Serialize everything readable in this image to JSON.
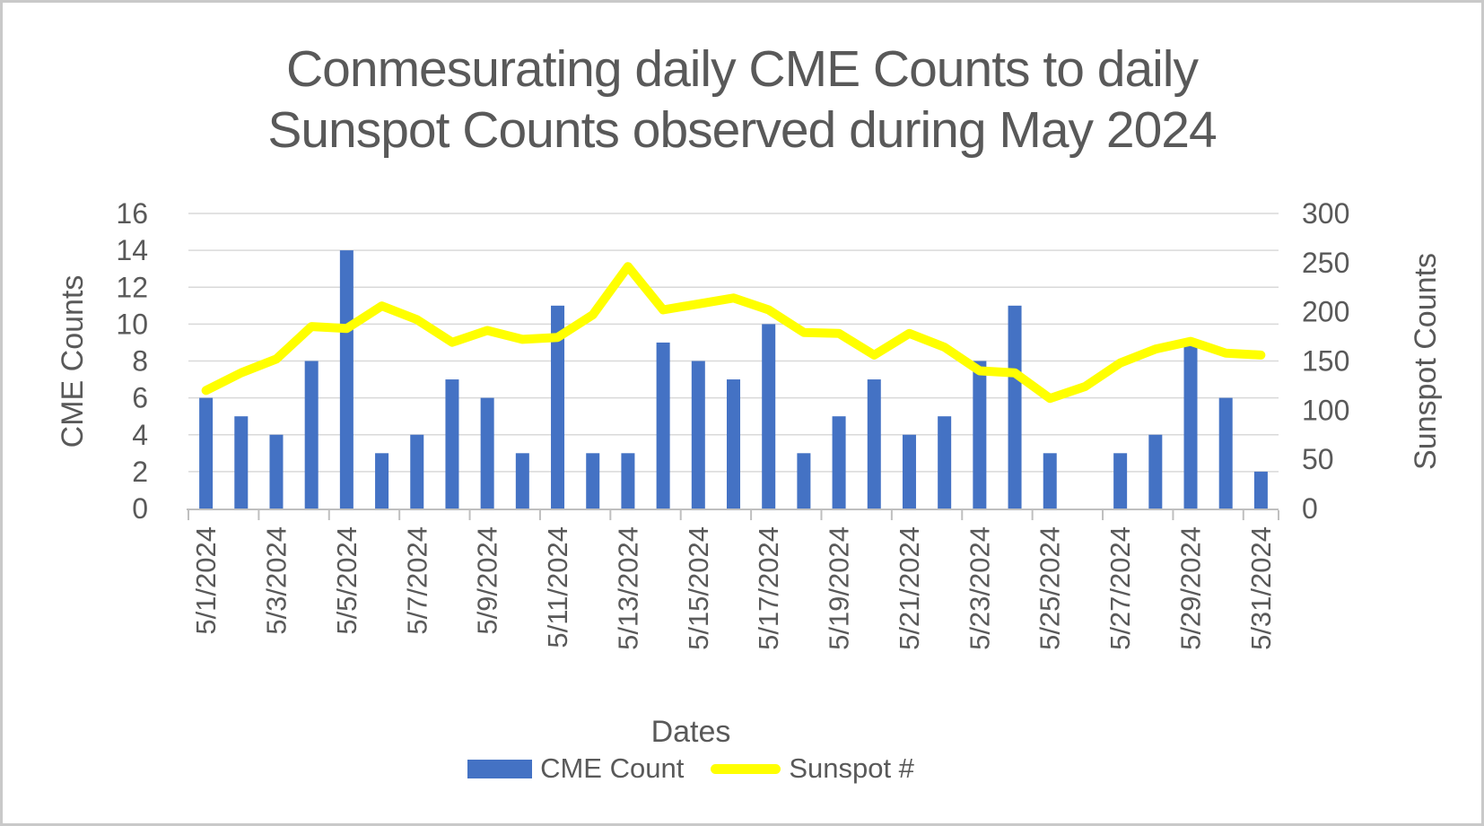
{
  "chart_data": {
    "type": "combo",
    "title": "Conmesurating daily CME Counts to daily Sunspot Counts observed during May 2024",
    "title_lines": [
      "Conmesurating daily CME Counts to daily",
      "Sunspot Counts observed during May 2024"
    ],
    "x_axis": {
      "title": "Dates",
      "label_interval": 2,
      "categories": [
        "5/1/2024",
        "5/2/2024",
        "5/3/2024",
        "5/4/2024",
        "5/5/2024",
        "5/6/2024",
        "5/7/2024",
        "5/8/2024",
        "5/9/2024",
        "5/10/2024",
        "5/11/2024",
        "5/12/2024",
        "5/13/2024",
        "5/14/2024",
        "5/15/2024",
        "5/16/2024",
        "5/17/2024",
        "5/18/2024",
        "5/19/2024",
        "5/20/2024",
        "5/21/2024",
        "5/22/2024",
        "5/23/2024",
        "5/24/2024",
        "5/25/2024",
        "5/26/2024",
        "5/27/2024",
        "5/28/2024",
        "5/29/2024",
        "5/30/2024",
        "5/31/2024"
      ]
    },
    "y_axis_left": {
      "title": "CME Counts",
      "min": 0,
      "max": 16,
      "step": 2,
      "ticks": [
        0,
        2,
        4,
        6,
        8,
        10,
        12,
        14,
        16
      ]
    },
    "y_axis_right": {
      "title": "Sunspot Counts",
      "min": 0,
      "max": 300,
      "step": 50,
      "ticks": [
        0,
        50,
        100,
        150,
        200,
        250,
        300
      ]
    },
    "series": [
      {
        "name": "CME Count",
        "type": "bar",
        "axis": "left",
        "color": "#4472C4",
        "values": [
          6,
          5,
          4,
          8,
          14,
          3,
          4,
          7,
          6,
          3,
          11,
          3,
          3,
          9,
          8,
          7,
          10,
          3,
          5,
          7,
          4,
          5,
          8,
          11,
          3,
          0,
          3,
          4,
          9,
          6,
          2
        ]
      },
      {
        "name": "Sunspot #",
        "type": "line",
        "axis": "right",
        "color": "#FFFF00",
        "values": [
          120,
          138,
          152,
          185,
          183,
          206,
          192,
          169,
          181,
          172,
          174,
          197,
          246,
          202,
          208,
          214,
          202,
          179,
          178,
          156,
          178,
          164,
          140,
          138,
          112,
          124,
          148,
          162,
          170,
          158,
          156
        ]
      }
    ],
    "legend": {
      "position": "bottom",
      "items": [
        {
          "label": "CME Count",
          "swatch": "bar",
          "color": "#4472C4"
        },
        {
          "label": "Sunspot #",
          "swatch": "line",
          "color": "#FFFF00"
        }
      ]
    },
    "grid": {
      "horizontal": true,
      "color": "#D9D9D9"
    },
    "axis_line_color": "#BFBFBF",
    "text_color": "#595959"
  }
}
